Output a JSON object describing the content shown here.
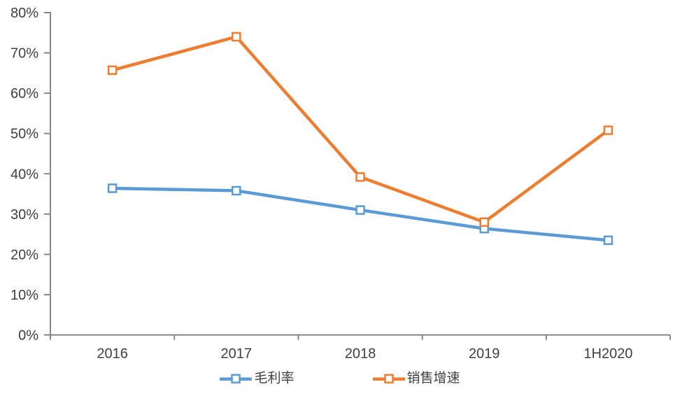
{
  "chart_data": {
    "type": "line",
    "title": "",
    "xlabel": "",
    "ylabel": "",
    "categories": [
      "2016",
      "2017",
      "2018",
      "2019",
      "1H2020"
    ],
    "series": [
      {
        "name": "毛利率",
        "color": "#5B9BD5",
        "values": [
          36.4,
          35.8,
          31.0,
          26.4,
          23.5
        ]
      },
      {
        "name": "销售增速",
        "color": "#ED7D31",
        "values": [
          65.7,
          74.0,
          39.2,
          28.0,
          50.8
        ]
      }
    ],
    "ylim": [
      0,
      80
    ],
    "y_ticks": [
      "0%",
      "10%",
      "20%",
      "30%",
      "40%",
      "50%",
      "60%",
      "70%",
      "80%"
    ],
    "y_tick_step": 10,
    "grid": false,
    "legend_position": "bottom",
    "marker": "square-hollow",
    "axis_color": "#868686",
    "text_color": "#3f3f3f",
    "background_color": "#ffffff"
  }
}
